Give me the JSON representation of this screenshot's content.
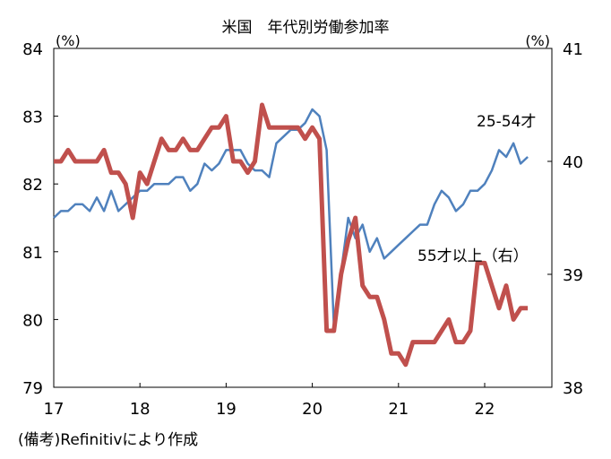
{
  "chart_data": {
    "type": "line",
    "title": "米国　年代別労働参加率",
    "source_note": "(備考)Refinitivにより作成",
    "left_unit": "(%)",
    "right_unit": "(%)",
    "x_ticks": [
      "17",
      "18",
      "19",
      "20",
      "21",
      "22"
    ],
    "left_axis": {
      "ylim": [
        79,
        84
      ],
      "ticks": [
        "84",
        "83",
        "82",
        "81",
        "80",
        "79"
      ]
    },
    "right_axis": {
      "ylim": [
        38,
        41
      ],
      "ticks": [
        "41",
        "40",
        "39",
        "38"
      ]
    },
    "series": [
      {
        "name": "25-54才",
        "axis": "left",
        "color": "#4f81bd",
        "x": [
          "2017-01",
          "2017-02",
          "2017-03",
          "2017-04",
          "2017-05",
          "2017-06",
          "2017-07",
          "2017-08",
          "2017-09",
          "2017-10",
          "2017-11",
          "2017-12",
          "2018-01",
          "2018-02",
          "2018-03",
          "2018-04",
          "2018-05",
          "2018-06",
          "2018-07",
          "2018-08",
          "2018-09",
          "2018-10",
          "2018-11",
          "2018-12",
          "2019-01",
          "2019-02",
          "2019-03",
          "2019-04",
          "2019-05",
          "2019-06",
          "2019-07",
          "2019-08",
          "2019-09",
          "2019-10",
          "2019-11",
          "2019-12",
          "2020-01",
          "2020-02",
          "2020-03",
          "2020-04",
          "2020-05",
          "2020-06",
          "2020-07",
          "2020-08",
          "2020-09",
          "2020-10",
          "2020-11",
          "2020-12",
          "2021-01",
          "2021-02",
          "2021-03",
          "2021-04",
          "2021-05",
          "2021-06",
          "2021-07",
          "2021-08",
          "2021-09",
          "2021-10",
          "2021-11",
          "2021-12",
          "2022-01",
          "2022-02",
          "2022-03",
          "2022-04",
          "2022-05",
          "2022-06",
          "2022-07"
        ],
        "values": [
          81.5,
          81.6,
          81.6,
          81.7,
          81.7,
          81.6,
          81.8,
          81.6,
          81.9,
          81.6,
          81.7,
          81.8,
          81.9,
          81.9,
          82.0,
          82.0,
          82.0,
          82.1,
          82.1,
          81.9,
          82.0,
          82.3,
          82.2,
          82.3,
          82.5,
          82.5,
          82.5,
          82.3,
          82.2,
          82.2,
          82.1,
          82.6,
          82.7,
          82.8,
          82.8,
          82.9,
          83.1,
          83.0,
          82.5,
          79.9,
          80.7,
          81.5,
          81.2,
          81.4,
          81.0,
          81.2,
          80.9,
          81.0,
          81.1,
          81.2,
          81.3,
          81.4,
          81.4,
          81.7,
          81.9,
          81.8,
          81.6,
          81.7,
          81.9,
          81.9,
          82.0,
          82.2,
          82.5,
          82.4,
          82.6,
          82.3,
          82.4
        ]
      },
      {
        "name": "55才以上（右）",
        "axis": "right",
        "color": "#c0504d",
        "x": [
          "2017-01",
          "2017-02",
          "2017-03",
          "2017-04",
          "2017-05",
          "2017-06",
          "2017-07",
          "2017-08",
          "2017-09",
          "2017-10",
          "2017-11",
          "2017-12",
          "2018-01",
          "2018-02",
          "2018-03",
          "2018-04",
          "2018-05",
          "2018-06",
          "2018-07",
          "2018-08",
          "2018-09",
          "2018-10",
          "2018-11",
          "2018-12",
          "2019-01",
          "2019-02",
          "2019-03",
          "2019-04",
          "2019-05",
          "2019-06",
          "2019-07",
          "2019-08",
          "2019-09",
          "2019-10",
          "2019-11",
          "2019-12",
          "2020-01",
          "2020-02",
          "2020-03",
          "2020-04",
          "2020-05",
          "2020-06",
          "2020-07",
          "2020-08",
          "2020-09",
          "2020-10",
          "2020-11",
          "2020-12",
          "2021-01",
          "2021-02",
          "2021-03",
          "2021-04",
          "2021-05",
          "2021-06",
          "2021-07",
          "2021-08",
          "2021-09",
          "2021-10",
          "2021-11",
          "2021-12",
          "2022-01",
          "2022-02",
          "2022-03",
          "2022-04",
          "2022-05",
          "2022-06",
          "2022-07"
        ],
        "values": [
          40.0,
          40.0,
          40.1,
          40.0,
          40.0,
          40.0,
          40.0,
          40.1,
          39.9,
          39.9,
          39.8,
          39.5,
          39.9,
          39.8,
          40.0,
          40.2,
          40.1,
          40.1,
          40.2,
          40.1,
          40.1,
          40.2,
          40.3,
          40.3,
          40.4,
          40.0,
          40.0,
          39.9,
          40.0,
          40.5,
          40.3,
          40.3,
          40.3,
          40.3,
          40.3,
          40.2,
          40.3,
          40.2,
          38.5,
          38.5,
          39.0,
          39.3,
          39.5,
          38.9,
          38.8,
          38.8,
          38.6,
          38.3,
          38.3,
          38.2,
          38.4,
          38.4,
          38.4,
          38.4,
          38.5,
          38.6,
          38.4,
          38.4,
          38.5,
          39.1,
          39.1,
          38.9,
          38.7,
          38.9,
          38.6,
          38.7,
          38.7
        ]
      }
    ]
  }
}
